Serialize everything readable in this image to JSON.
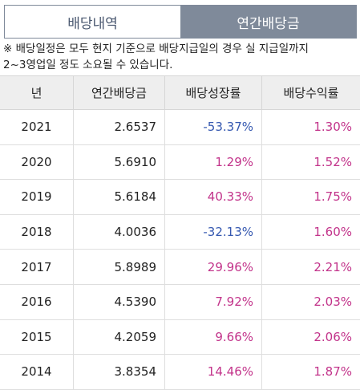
{
  "tabs": [
    {
      "label": "배당내역",
      "active": false
    },
    {
      "label": "연간배당금",
      "active": true
    }
  ],
  "notice": {
    "line1": "※ 배당일정은 모두 현지 기준으로 배당지급일의 경우 실 지급일까지",
    "line2": "2~3영업일 정도 소요될 수 있습니다."
  },
  "table": {
    "headers": [
      "년",
      "연간배당금",
      "배당성장률",
      "배당수익률"
    ],
    "rows": [
      {
        "year": "2021",
        "amount": "2.6537",
        "growth": "-53.37%",
        "yield": "1.30%"
      },
      {
        "year": "2020",
        "amount": "5.6910",
        "growth": "1.29%",
        "yield": "1.52%"
      },
      {
        "year": "2019",
        "amount": "5.6184",
        "growth": "40.33%",
        "yield": "1.75%"
      },
      {
        "year": "2018",
        "amount": "4.0036",
        "growth": "-32.13%",
        "yield": "1.60%"
      },
      {
        "year": "2017",
        "amount": "5.8989",
        "growth": "29.96%",
        "yield": "2.21%"
      },
      {
        "year": "2016",
        "amount": "4.5390",
        "growth": "7.92%",
        "yield": "2.03%"
      },
      {
        "year": "2015",
        "amount": "4.2059",
        "growth": "9.66%",
        "yield": "2.06%"
      },
      {
        "year": "2014",
        "amount": "3.8354",
        "growth": "14.46%",
        "yield": "1.87%"
      }
    ]
  },
  "colors": {
    "negative": "#3558b0",
    "positive": "#c2338a",
    "tab_active_bg": "#7f8a9a"
  }
}
